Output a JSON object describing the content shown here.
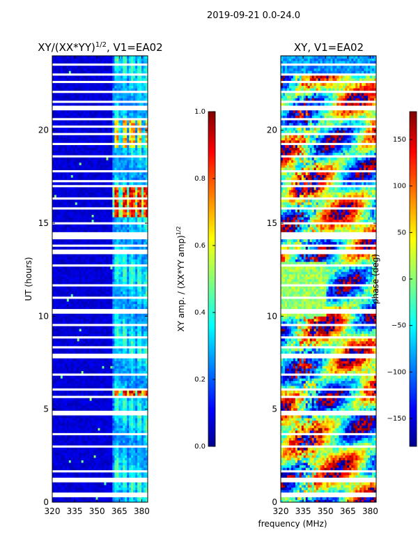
{
  "suptitle": "2019-09-21 0.0-24.0",
  "xlabel_shared": "frequency (MHz)",
  "chart_data": [
    {
      "type": "heatmap",
      "title": "XY/(XX*YY)^{1/2}, V1=EA02",
      "title_main": "XY/(XX*YY)",
      "title_exp": "1/2",
      "title_suffix": ", V1=EA02",
      "xlabel": "frequency (MHz)",
      "ylabel": "UT (hours)",
      "xlim": [
        320,
        384
      ],
      "ylim": [
        0,
        24
      ],
      "xticks": [
        320,
        335,
        350,
        365,
        380
      ],
      "yticks": [
        0,
        5,
        10,
        15,
        20
      ],
      "colorbar": {
        "label": "XY amp. / (XX*YY amp)^{1/2}",
        "label_main": "XY amp. / (XX*YY amp)",
        "label_exp": "1/2",
        "range": [
          0.0,
          1.0
        ],
        "ticks": [
          "0.0",
          "0.2",
          "0.4",
          "0.6",
          "0.8",
          "1.0"
        ],
        "colormap": "jet"
      },
      "high_amplitude_bands_hours": [
        [
          5.6,
          6.1
        ],
        [
          15.3,
          17.1
        ]
      ],
      "active_frequency_band_mhz": [
        361,
        383
      ]
    },
    {
      "type": "heatmap",
      "title": "XY, V1=EA02",
      "xlabel": "frequency (MHz)",
      "ylabel": "",
      "xlim": [
        320,
        384
      ],
      "ylim": [
        0,
        24
      ],
      "xticks": [
        320,
        335,
        350,
        365,
        380
      ],
      "yticks": [
        0,
        5,
        10,
        15,
        20
      ],
      "colorbar": {
        "label": "phase (deg)",
        "range": [
          -180,
          180
        ],
        "ticks": [
          "−150",
          "−100",
          "−50",
          "0",
          "50",
          "100",
          "150"
        ],
        "colormap": "jet"
      }
    }
  ],
  "colors": {
    "jet_dark_blue": "#00008f",
    "jet_blue": "#0000ff",
    "jet_cyan": "#00ffff",
    "jet_yellow": "#ffff00",
    "jet_red": "#ff0000",
    "jet_dark_red": "#800000"
  }
}
